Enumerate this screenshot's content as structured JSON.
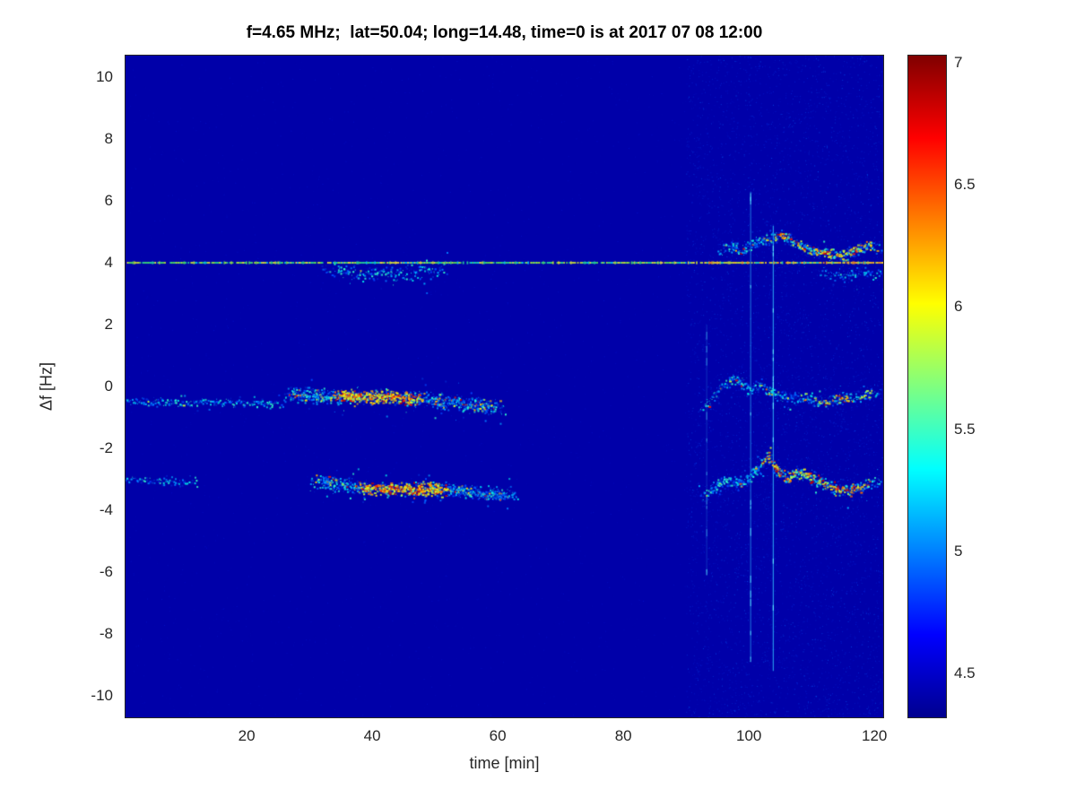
{
  "chart_data": {
    "type": "heatmap",
    "title": "f=4.65 MHz;  lat=50.04; long=14.48, time=0 is at 2017 07 08 12:00",
    "xlabel": "time [min]",
    "ylabel": "Δf [Hz]",
    "xlim": [
      0.7,
      121.4
    ],
    "ylim": [
      -10.7,
      10.7
    ],
    "xticks": [
      20,
      40,
      60,
      80,
      100,
      120
    ],
    "yticks": [
      10,
      8,
      6,
      4,
      2,
      0,
      -2,
      -4,
      -6,
      -8,
      -10
    ],
    "grid": false,
    "legend": false,
    "colorbar": {
      "position": "right",
      "colormap": "jet",
      "clim": [
        4.32,
        7.03
      ],
      "ticks": [
        4.5,
        5,
        5.5,
        6,
        6.5,
        7
      ],
      "gradient_stops": [
        {
          "pos": 0.0,
          "color": "#00008f"
        },
        {
          "pos": 0.125,
          "color": "#0000ff"
        },
        {
          "pos": 0.375,
          "color": "#00ffff"
        },
        {
          "pos": 0.625,
          "color": "#ffff00"
        },
        {
          "pos": 0.875,
          "color": "#ff0000"
        },
        {
          "pos": 1.0,
          "color": "#800000"
        }
      ]
    },
    "background_value": 4.43,
    "palette": {
      "hot": [
        "#c8ff32",
        "#ffe100",
        "#ffb400",
        "#ff6e00",
        "#ff1e00",
        "#c80000"
      ],
      "cool": [
        "#0024c8",
        "#0048ff",
        "#0078ff",
        "#00aaff",
        "#00e6e6",
        "#32ffc8"
      ]
    },
    "noise": {
      "base_count": 3500,
      "right_count": 5200,
      "right_start_frac": 0.74
    },
    "features": [
      {
        "id": "carrier-line",
        "kind": "dashed-hline",
        "f": 4.0,
        "t0": 0.7,
        "t1": 121.4,
        "note": "continuous dashed carrier trace at +4 Hz across full record"
      },
      {
        "id": "doppler-trace-0hz-main",
        "kind": "speckle-trace",
        "points": [
          [
            26,
            -0.2
          ],
          [
            31,
            -0.3
          ],
          [
            35,
            -0.3
          ],
          [
            39,
            -0.35
          ],
          [
            43,
            -0.3
          ],
          [
            47,
            -0.4
          ],
          [
            51,
            -0.45
          ],
          [
            55,
            -0.55
          ],
          [
            61,
            -0.7
          ]
        ],
        "spread": 0.28,
        "density": 4.2,
        "heat": 0.85,
        "heat_t": [
          33,
          48
        ]
      },
      {
        "id": "doppler-trace-minus3hz-main",
        "kind": "speckle-trace",
        "points": [
          [
            30,
            -3.05
          ],
          [
            34,
            -3.15
          ],
          [
            38,
            -3.25
          ],
          [
            42,
            -3.3
          ],
          [
            46,
            -3.3
          ],
          [
            50,
            -3.3
          ],
          [
            54,
            -3.35
          ],
          [
            58,
            -3.45
          ],
          [
            63,
            -3.5
          ]
        ],
        "spread": 0.26,
        "density": 4.2,
        "heat": 0.8,
        "heat_t": [
          37,
          53
        ]
      },
      {
        "id": "trace-left-0hz",
        "kind": "speckle-trace",
        "points": [
          [
            0.7,
            -0.45
          ],
          [
            6,
            -0.5
          ],
          [
            14,
            -0.5
          ],
          [
            26,
            -0.55
          ]
        ],
        "spread": 0.16,
        "density": 0.9,
        "heat": 0.04,
        "heat_t": [
          2,
          6
        ]
      },
      {
        "id": "trace-left-minus3hz",
        "kind": "speckle-trace",
        "points": [
          [
            0.7,
            -3.0
          ],
          [
            5,
            -3.05
          ],
          [
            12,
            -3.1
          ]
        ],
        "spread": 0.15,
        "density": 0.8,
        "heat": 0.0,
        "heat_t": [
          0,
          0
        ]
      },
      {
        "id": "trace-right-0hz",
        "kind": "speckle-trace",
        "points": [
          [
            92,
            -0.7
          ],
          [
            94,
            -0.4
          ],
          [
            96,
            0.1
          ],
          [
            98,
            0.25
          ],
          [
            100,
            -0.05
          ],
          [
            102,
            0.05
          ],
          [
            104,
            -0.2
          ],
          [
            106,
            -0.35
          ],
          [
            108,
            -0.3
          ],
          [
            110,
            -0.45
          ],
          [
            112,
            -0.5
          ],
          [
            114,
            -0.4
          ],
          [
            116,
            -0.35
          ],
          [
            118,
            -0.3
          ],
          [
            121,
            -0.15
          ]
        ],
        "spread": 0.22,
        "density": 2.0,
        "heat": 0.35,
        "heat_t": [
          108,
          120
        ]
      },
      {
        "id": "trace-right-minus3hz",
        "kind": "speckle-trace",
        "points": [
          [
            92,
            -3.6
          ],
          [
            94,
            -3.35
          ],
          [
            96,
            -3.05
          ],
          [
            98,
            -3.15
          ],
          [
            100,
            -2.95
          ],
          [
            102,
            -2.45
          ],
          [
            103,
            -2.2
          ],
          [
            104,
            -2.6
          ],
          [
            106,
            -2.95
          ],
          [
            108,
            -2.75
          ],
          [
            110,
            -2.95
          ],
          [
            112,
            -3.1
          ],
          [
            114,
            -3.3
          ],
          [
            116,
            -3.35
          ],
          [
            118,
            -3.25
          ],
          [
            121,
            -3.0
          ]
        ],
        "spread": 0.24,
        "density": 3.0,
        "heat": 0.5,
        "heat_t": [
          101,
          121
        ]
      },
      {
        "id": "trace-right-above-carrier",
        "kind": "speckle-trace",
        "points": [
          [
            95,
            4.35
          ],
          [
            97,
            4.55
          ],
          [
            99,
            4.4
          ],
          [
            101,
            4.7
          ],
          [
            103,
            4.75
          ],
          [
            105,
            4.9
          ],
          [
            107,
            4.65
          ],
          [
            109,
            4.5
          ],
          [
            111,
            4.35
          ],
          [
            113,
            4.3
          ],
          [
            115,
            4.25
          ],
          [
            117,
            4.45
          ],
          [
            119,
            4.55
          ],
          [
            121,
            4.45
          ]
        ],
        "spread": 0.22,
        "density": 2.4,
        "heat": 0.45,
        "heat_t": [
          103,
          121
        ]
      },
      {
        "id": "speckle-under-carrier-mid",
        "kind": "speckle-trace",
        "points": [
          [
            32,
            3.8
          ],
          [
            37,
            3.7
          ],
          [
            42,
            3.65
          ],
          [
            47,
            3.7
          ],
          [
            52,
            3.8
          ]
        ],
        "spread": 0.28,
        "density": 1.2,
        "heat": 0.03,
        "heat_t": [
          0,
          0
        ]
      },
      {
        "id": "speckle-under-carrier-right",
        "kind": "speckle-trace",
        "points": [
          [
            111,
            3.7
          ],
          [
            115,
            3.6
          ],
          [
            118,
            3.7
          ],
          [
            121,
            3.65
          ]
        ],
        "spread": 0.25,
        "density": 1.0,
        "heat": 0.05,
        "heat_t": [
          0,
          0
        ]
      },
      {
        "id": "interference-vline-1",
        "kind": "vline",
        "t": 100.2,
        "f0": -8.8,
        "f1": 6.3,
        "alpha": 0.5
      },
      {
        "id": "interference-vline-2",
        "kind": "vline",
        "t": 103.8,
        "f0": -9.2,
        "f1": 5.2,
        "alpha": 0.75
      },
      {
        "id": "interference-vline-3",
        "kind": "vline",
        "t": 93.2,
        "f0": -6.0,
        "f1": 2.0,
        "alpha": 0.2
      }
    ]
  }
}
